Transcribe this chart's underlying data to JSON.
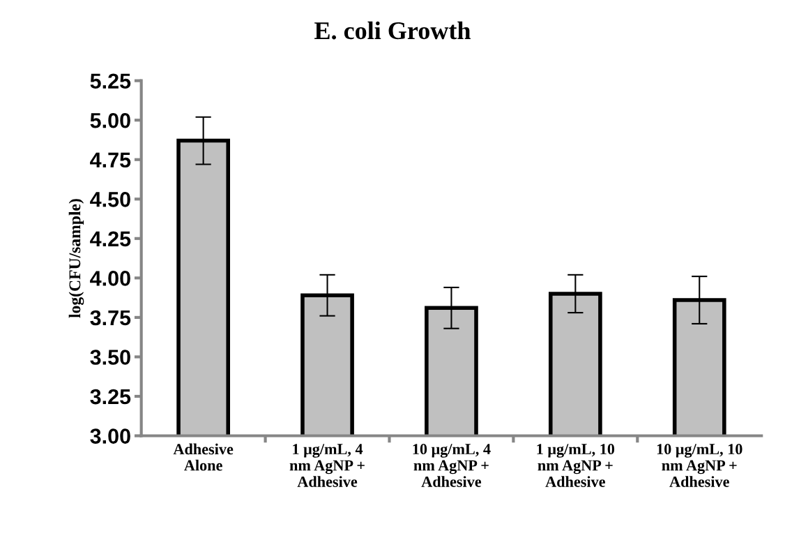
{
  "chart_data": {
    "type": "bar",
    "title": "E. coli Growth",
    "ylabel": "log(CFU/sample)",
    "categories": [
      "Adhesive\nAlone",
      "1 μg/mL, 4\nnm AgNP +\nAdhesive",
      "10 μg/mL, 4\nnm AgNP +\nAdhesive",
      "1 μg/mL, 10\nnm AgNP +\nAdhesive",
      "10 μg/mL, 10\nnm AgNP +\nAdhesive"
    ],
    "values": [
      4.87,
      3.89,
      3.81,
      3.9,
      3.86
    ],
    "errors": [
      0.15,
      0.13,
      0.13,
      0.12,
      0.15
    ],
    "color": "#c0c0c0",
    "ylim": [
      3.0,
      5.25
    ],
    "yticks": [
      {
        "value": 3.0,
        "label": "3.00"
      },
      {
        "value": 3.25,
        "label": "3.25"
      },
      {
        "value": 3.5,
        "label": "3.50"
      },
      {
        "value": 3.75,
        "label": "3.75"
      },
      {
        "value": 4.0,
        "label": "4.00"
      },
      {
        "value": 4.25,
        "label": "4.25"
      },
      {
        "value": 4.5,
        "label": "4.50"
      },
      {
        "value": 4.75,
        "label": "4.75"
      },
      {
        "value": 5.0,
        "label": "5.00"
      },
      {
        "value": 5.25,
        "label": "5.25"
      }
    ],
    "grid": false
  }
}
